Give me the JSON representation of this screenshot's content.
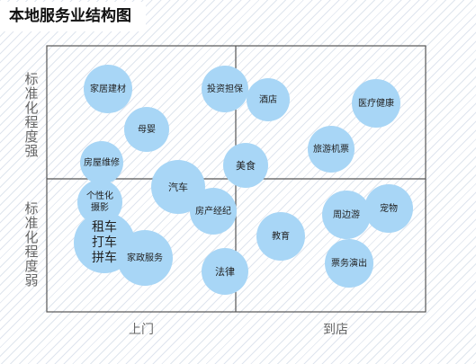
{
  "title": "本地服务业结构图",
  "axis": {
    "y_top": "标准化程度强",
    "y_bottom": "标准化程度弱",
    "x_left": "上门",
    "x_right": "到店"
  },
  "items": [
    {
      "id": "jiaju",
      "label": "家居建材"
    },
    {
      "id": "touzi",
      "label": "投资担保"
    },
    {
      "id": "jiudian",
      "label": "酒店"
    },
    {
      "id": "yiliao",
      "label": "医疗健康"
    },
    {
      "id": "muying",
      "label": "母婴"
    },
    {
      "id": "lvyou",
      "label": "旅游机票"
    },
    {
      "id": "fangwu",
      "label": "房屋维修"
    },
    {
      "id": "meishi",
      "label": "美食"
    },
    {
      "id": "qiche",
      "label": "汽车"
    },
    {
      "id": "gexing",
      "label": "个性化\n摄影"
    },
    {
      "id": "fangchan",
      "label": "房产经纪"
    },
    {
      "id": "zuche",
      "label": "租车\n打车\n拼车"
    },
    {
      "id": "jiazheng",
      "label": "家政服务"
    },
    {
      "id": "jiaoyu",
      "label": "教育"
    },
    {
      "id": "zhoubian",
      "label": "周边游"
    },
    {
      "id": "chongwu",
      "label": "宠物"
    },
    {
      "id": "piaowu",
      "label": "票务演出"
    },
    {
      "id": "falv",
      "label": "法律"
    }
  ]
}
